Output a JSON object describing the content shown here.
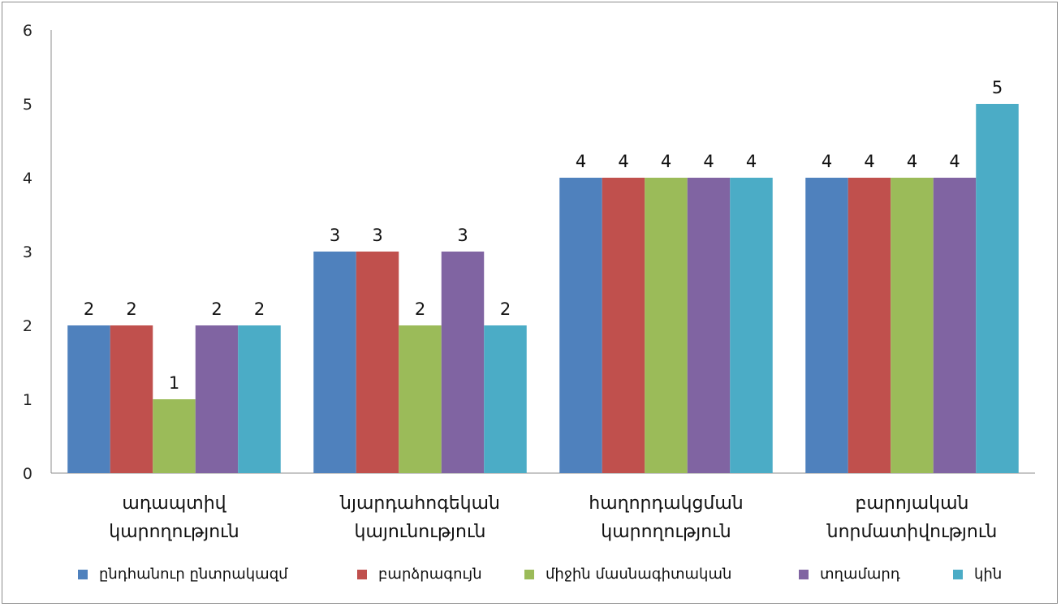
{
  "chart_data": {
    "type": "bar",
    "categories": [
      [
        "ադապտիվ",
        "կարողություն"
      ],
      [
        "նյարդահոգեկան",
        "կայունություն"
      ],
      [
        "հաղորդակցման",
        "կարողություն"
      ],
      [
        "բարոյական",
        "նորմատիվություն"
      ]
    ],
    "series": [
      {
        "name": "ընդհանուր ընտրակազմ",
        "color": "#4F81BD",
        "values": [
          2,
          3,
          4,
          4
        ]
      },
      {
        "name": "բարձրագույն",
        "color": "#C0504D",
        "values": [
          2,
          3,
          4,
          4
        ]
      },
      {
        "name": "միջին մասնագիտական",
        "color": "#9BBB59",
        "values": [
          1,
          2,
          4,
          4
        ]
      },
      {
        "name": "տղամարդ",
        "color": "#8064A2",
        "values": [
          2,
          3,
          4,
          4
        ]
      },
      {
        "name": "կին",
        "color": "#4BACC6",
        "values": [
          2,
          2,
          4,
          5
        ]
      }
    ],
    "yticks": [
      "0",
      "1",
      "2",
      "3",
      "4",
      "5",
      "6"
    ],
    "ylim": [
      0,
      6
    ],
    "grid": false,
    "legend_position": "bottom",
    "data_labels": true
  }
}
